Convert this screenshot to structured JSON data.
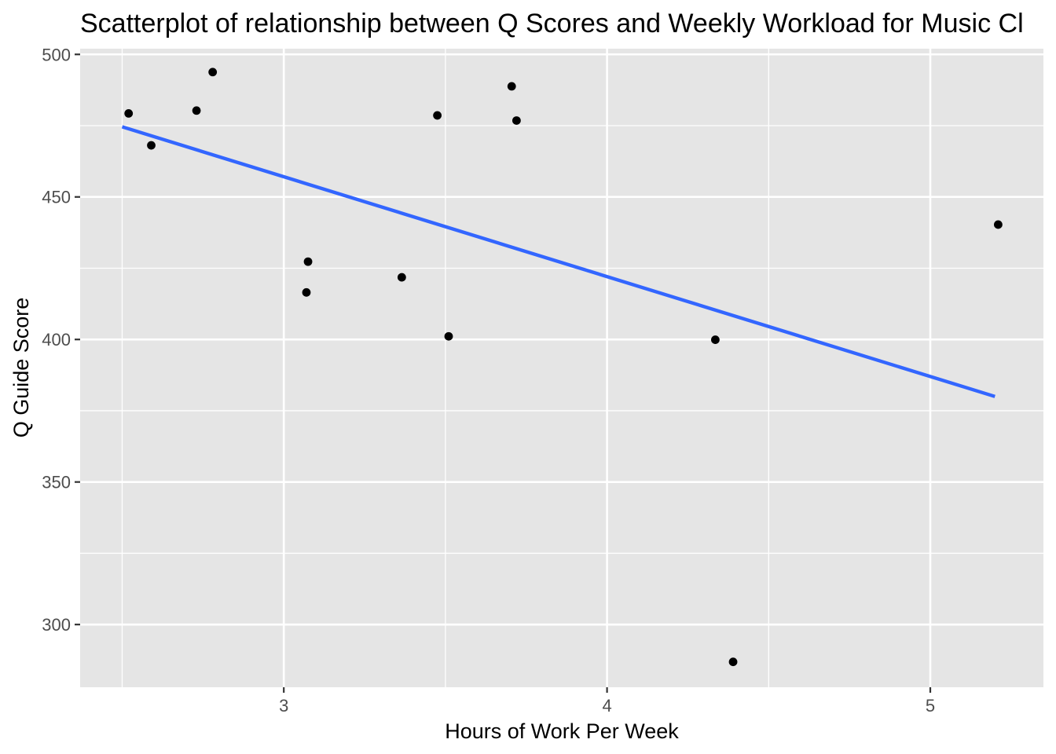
{
  "chart_data": {
    "type": "scatter",
    "title": "Scatterplot of relationship between Q Scores and Weekly Workload for Music Cl",
    "xlabel": "Hours of Work Per Week",
    "ylabel": "Q Guide Score",
    "xlim": [
      2.37,
      5.35
    ],
    "ylim": [
      278,
      502
    ],
    "x_ticks": [
      3,
      4,
      5
    ],
    "x_tick_labels": [
      "3",
      "4",
      "5"
    ],
    "x_minor_ticks": [
      2.5,
      3.5,
      4.5
    ],
    "y_ticks": [
      300,
      350,
      400,
      450,
      500
    ],
    "y_tick_labels": [
      "300",
      "350",
      "400",
      "450",
      "500"
    ],
    "y_minor_ticks": [
      325,
      375,
      425,
      475
    ],
    "grid": true,
    "panel_background": "#e5e5e5",
    "grid_color": "#ffffff",
    "point_color": "#000000",
    "fit_line_color": "#3366ff",
    "points": [
      {
        "x": 2.52,
        "y": 479.3
      },
      {
        "x": 2.59,
        "y": 468.1
      },
      {
        "x": 2.73,
        "y": 480.3
      },
      {
        "x": 2.78,
        "y": 493.8
      },
      {
        "x": 3.07,
        "y": 416.5
      },
      {
        "x": 3.075,
        "y": 427.3
      },
      {
        "x": 3.365,
        "y": 421.8
      },
      {
        "x": 3.475,
        "y": 478.6
      },
      {
        "x": 3.51,
        "y": 401.1
      },
      {
        "x": 3.705,
        "y": 488.8
      },
      {
        "x": 3.72,
        "y": 476.8
      },
      {
        "x": 4.335,
        "y": 399.9
      },
      {
        "x": 4.39,
        "y": 286.9
      },
      {
        "x": 5.21,
        "y": 440.3
      }
    ],
    "fit_line": {
      "x": [
        2.5,
        5.2
      ],
      "y": [
        474.6,
        380.0
      ]
    }
  }
}
